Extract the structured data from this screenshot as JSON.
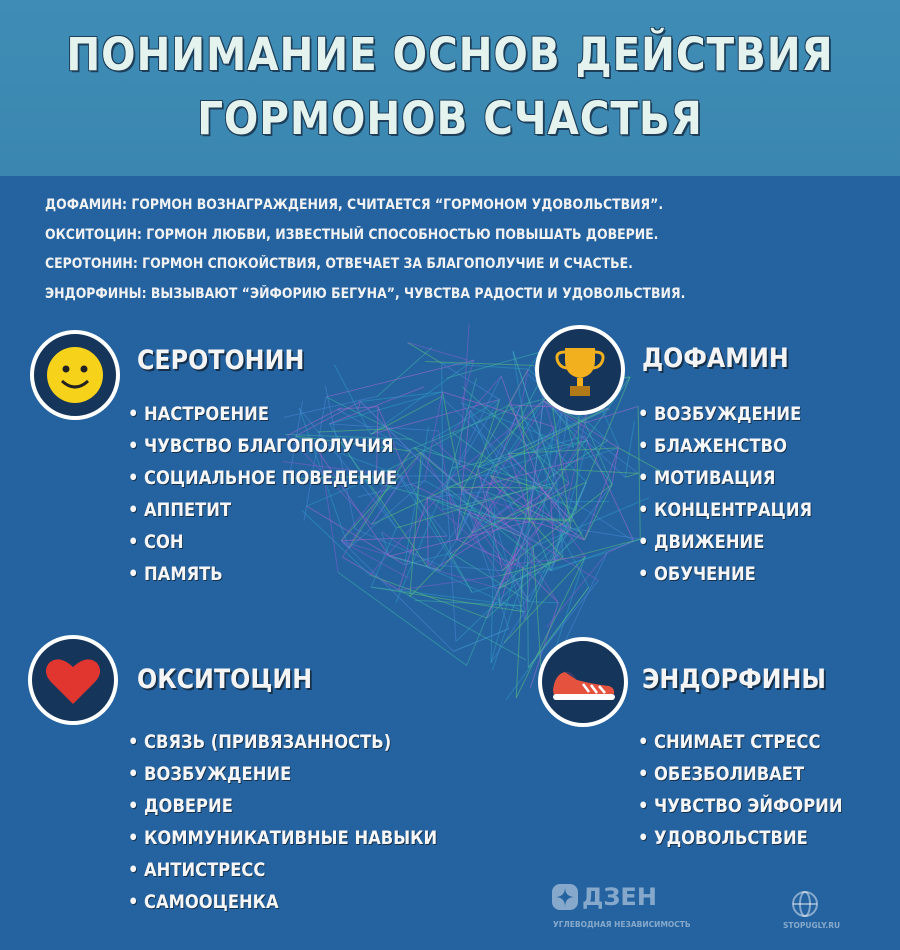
{
  "header": {
    "title": [
      "ПОНИМАНИЕ ОСНОВ ДЕЙСТВИЯ",
      "ГОРМОНОВ СЧАСТЬЯ"
    ]
  },
  "intro": [
    "ДОФАМИН: ГОРМОН ВОЗНАГРАЖДЕНИЯ, СЧИТАЕТСЯ “ГОРМОНОМ УДОВОЛЬСТВИЯ”.",
    "ОКСИТОЦИН: ГОРМОН ЛЮБВИ, ИЗВЕСТНЫЙ СПОСОБНОСТЬЮ ПОВЫШАТЬ ДОВЕРИЕ.",
    "СЕРОТОНИН: ГОРМОН СПОКОЙСТВИЯ, ОТВЕЧАЕТ ЗА БЛАГОПОЛУЧИЕ И СЧАСТЬЕ.",
    "ЭНДОРФИНЫ: ВЫЗЫВАЮТ “ЭЙФОРИЮ БЕГУНА”, ЧУВСТВА РАДОСТИ И УДОВОЛЬСТВИЯ."
  ],
  "sections": [
    {
      "title": "СЕРОТОНИН",
      "items": [
        "НАСТРОЕНИЕ",
        "ЧУВСТВО БЛАГОПОЛУЧИЯ",
        "СОЦИАЛЬНОЕ ПОВЕДЕНИЕ",
        "АППЕТИТ",
        "СОН",
        "ПАМЯТЬ"
      ]
    },
    {
      "title": "ДОФАМИН",
      "items": [
        "ВОЗБУЖДЕНИЕ",
        "БЛАЖЕНСТВО",
        "МОТИВАЦИЯ",
        "КОНЦЕНТРАЦИЯ",
        "ДВИЖЕНИЕ",
        "ОБУЧЕНИЕ"
      ]
    },
    {
      "title": "ОКСИТОЦИН",
      "items": [
        "СВЯЗЬ (ПРИВЯЗАННОСТЬ)",
        "ВОЗБУЖДЕНИЕ",
        "ДОВЕРИЕ",
        "КОММУНИКАТИВНЫЕ НАВЫКИ",
        "АНТИСТРЕСС",
        "САМООЦЕНКА"
      ]
    },
    {
      "title": "ЭНДОРФИНЫ",
      "items": [
        "СНИМАЕТ СТРЕСС",
        "ОБЕЗБОЛИВАЕТ",
        "ЧУВСТВО ЭЙФОРИИ",
        "УДОВОЛЬСТВИЕ"
      ]
    }
  ],
  "footer": {
    "brand": "ДЗЕН",
    "channel": "УГЛЕВОДНАЯ НЕЗАВИСИМОСТЬ",
    "site": "STOPUGLY.RU"
  }
}
